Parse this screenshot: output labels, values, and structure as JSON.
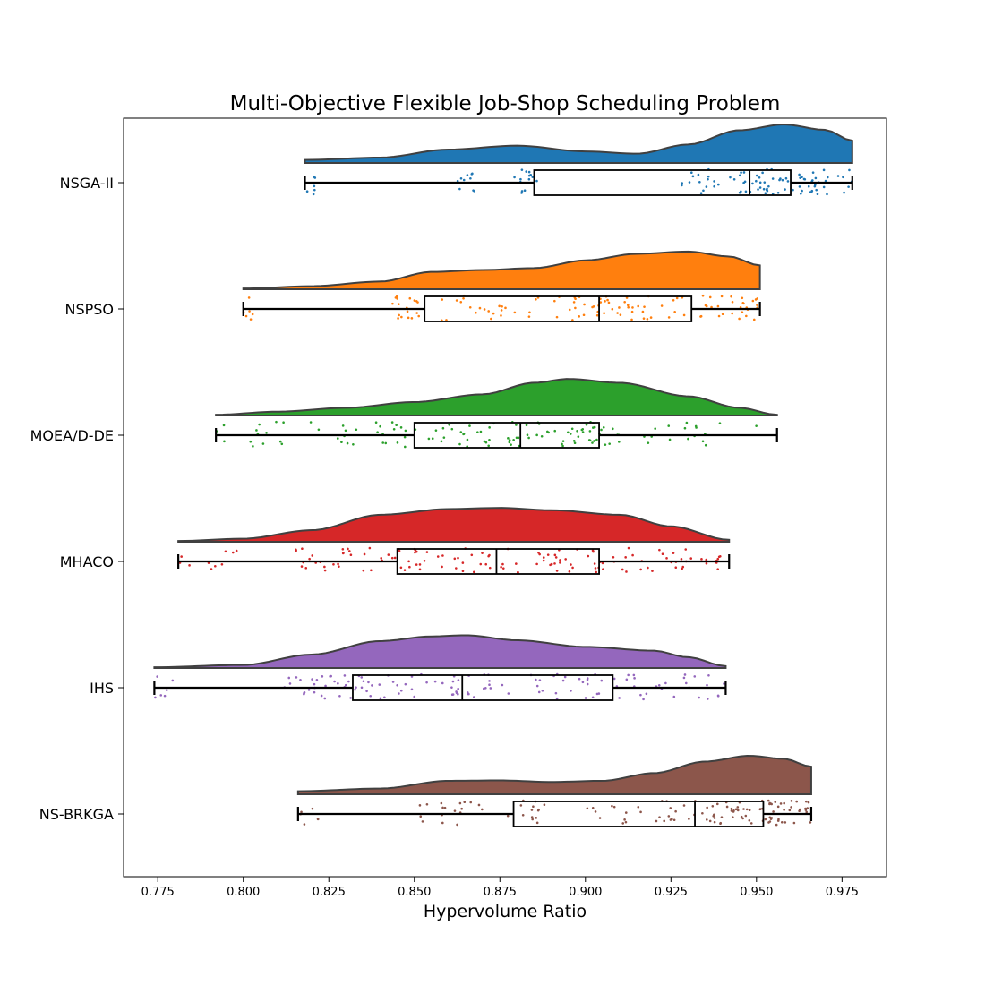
{
  "chart_data": {
    "type": "raincloud",
    "title": "Multi-Objective Flexible Job-Shop Scheduling Problem",
    "xlabel": "Hypervolume Ratio",
    "ylabel": "",
    "xlim": [
      0.765,
      0.988
    ],
    "xticks": [
      "0.775",
      "0.800",
      "0.825",
      "0.850",
      "0.875",
      "0.900",
      "0.925",
      "0.950",
      "0.975"
    ],
    "grid": false,
    "categories": [
      "NSGA-II",
      "NSPSO",
      "MOEA/D-DE",
      "MHACO",
      "IHS",
      "NS-BRKGA"
    ],
    "series": [
      {
        "color": "#1f77b4",
        "min": 0.818,
        "q1": 0.885,
        "median": 0.948,
        "q3": 0.96,
        "max": 0.978,
        "clusters": [
          [
            0.818,
            0.822,
            6
          ],
          [
            0.862,
            0.868,
            10
          ],
          [
            0.878,
            0.886,
            14
          ],
          [
            0.928,
            0.94,
            16
          ],
          [
            0.942,
            0.978,
            70
          ]
        ],
        "density": [
          [
            0.818,
            0.08
          ],
          [
            0.84,
            0.14
          ],
          [
            0.86,
            0.35
          ],
          [
            0.88,
            0.45
          ],
          [
            0.9,
            0.3
          ],
          [
            0.915,
            0.24
          ],
          [
            0.93,
            0.48
          ],
          [
            0.945,
            0.85
          ],
          [
            0.958,
            1.0
          ],
          [
            0.97,
            0.86
          ],
          [
            0.978,
            0.58
          ]
        ]
      },
      {
        "color": "#ff7f0e",
        "min": 0.8,
        "q1": 0.853,
        "median": 0.904,
        "q3": 0.931,
        "max": 0.951,
        "clusters": [
          [
            0.8,
            0.803,
            6
          ],
          [
            0.843,
            0.853,
            18
          ],
          [
            0.857,
            0.88,
            20
          ],
          [
            0.883,
            0.904,
            22
          ],
          [
            0.904,
            0.931,
            32
          ],
          [
            0.931,
            0.951,
            30
          ]
        ],
        "density": [
          [
            0.8,
            0.02
          ],
          [
            0.82,
            0.08
          ],
          [
            0.84,
            0.2
          ],
          [
            0.855,
            0.45
          ],
          [
            0.87,
            0.5
          ],
          [
            0.885,
            0.55
          ],
          [
            0.9,
            0.75
          ],
          [
            0.915,
            0.92
          ],
          [
            0.93,
            0.98
          ],
          [
            0.942,
            0.85
          ],
          [
            0.951,
            0.62
          ]
        ]
      },
      {
        "color": "#2ca02c",
        "min": 0.792,
        "q1": 0.85,
        "median": 0.881,
        "q3": 0.904,
        "max": 0.956,
        "clusters": [
          [
            0.792,
            0.825,
            16
          ],
          [
            0.825,
            0.85,
            22
          ],
          [
            0.85,
            0.881,
            34
          ],
          [
            0.881,
            0.904,
            34
          ],
          [
            0.904,
            0.956,
            26
          ]
        ],
        "density": [
          [
            0.792,
            0.02
          ],
          [
            0.81,
            0.1
          ],
          [
            0.83,
            0.2
          ],
          [
            0.85,
            0.35
          ],
          [
            0.87,
            0.55
          ],
          [
            0.885,
            0.85
          ],
          [
            0.895,
            0.95
          ],
          [
            0.91,
            0.85
          ],
          [
            0.93,
            0.5
          ],
          [
            0.945,
            0.2
          ],
          [
            0.956,
            0.02
          ]
        ]
      },
      {
        "color": "#d62728",
        "min": 0.781,
        "q1": 0.845,
        "median": 0.874,
        "q3": 0.904,
        "max": 0.942,
        "clusters": [
          [
            0.781,
            0.8,
            10
          ],
          [
            0.815,
            0.845,
            30
          ],
          [
            0.845,
            0.874,
            32
          ],
          [
            0.874,
            0.904,
            34
          ],
          [
            0.904,
            0.942,
            36
          ]
        ],
        "density": [
          [
            0.781,
            0.02
          ],
          [
            0.8,
            0.08
          ],
          [
            0.82,
            0.3
          ],
          [
            0.84,
            0.7
          ],
          [
            0.86,
            0.85
          ],
          [
            0.875,
            0.88
          ],
          [
            0.89,
            0.82
          ],
          [
            0.91,
            0.7
          ],
          [
            0.925,
            0.4
          ],
          [
            0.942,
            0.05
          ]
        ]
      },
      {
        "color": "#9467bd",
        "min": 0.774,
        "q1": 0.832,
        "median": 0.864,
        "q3": 0.908,
        "max": 0.941,
        "clusters": [
          [
            0.774,
            0.782,
            6
          ],
          [
            0.812,
            0.832,
            28
          ],
          [
            0.832,
            0.864,
            36
          ],
          [
            0.864,
            0.908,
            38
          ],
          [
            0.908,
            0.941,
            28
          ]
        ],
        "density": [
          [
            0.774,
            0.02
          ],
          [
            0.8,
            0.08
          ],
          [
            0.82,
            0.35
          ],
          [
            0.84,
            0.7
          ],
          [
            0.855,
            0.82
          ],
          [
            0.865,
            0.85
          ],
          [
            0.88,
            0.72
          ],
          [
            0.9,
            0.55
          ],
          [
            0.92,
            0.45
          ],
          [
            0.93,
            0.28
          ],
          [
            0.941,
            0.05
          ]
        ]
      },
      {
        "color": "#8c564b",
        "min": 0.816,
        "q1": 0.879,
        "median": 0.932,
        "q3": 0.952,
        "max": 0.966,
        "clusters": [
          [
            0.816,
            0.822,
            6
          ],
          [
            0.85,
            0.87,
            18
          ],
          [
            0.876,
            0.888,
            14
          ],
          [
            0.9,
            0.932,
            26
          ],
          [
            0.932,
            0.952,
            38
          ],
          [
            0.952,
            0.966,
            36
          ]
        ],
        "density": [
          [
            0.816,
            0.08
          ],
          [
            0.84,
            0.15
          ],
          [
            0.86,
            0.35
          ],
          [
            0.875,
            0.36
          ],
          [
            0.89,
            0.32
          ],
          [
            0.905,
            0.35
          ],
          [
            0.92,
            0.55
          ],
          [
            0.935,
            0.85
          ],
          [
            0.948,
            1.0
          ],
          [
            0.958,
            0.92
          ],
          [
            0.966,
            0.72
          ]
        ]
      }
    ]
  }
}
